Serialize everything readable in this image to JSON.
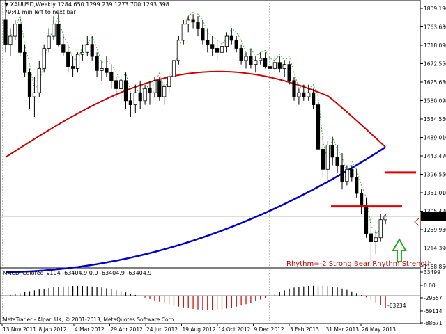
{
  "main_header": {
    "symbol": "XAUUSD,Weekly",
    "ohlc": "1284.650 1299.239 1273.700 1293.398",
    "bar_timer": "79:41 min left to next bar"
  },
  "macd_header": {
    "title": "MACD_Colored_v104 -63404.9 0.0 -63404.9 -63404.9"
  },
  "footer": {
    "copyright": "MetaTrader - Alpari UK, © 2001-2013, MetaQuotes Software Corp."
  },
  "annotation": {
    "rhythm_text": "Rhythm=-2 Strong Bear Rhythm Strength"
  },
  "current_price_tag": "1293.398",
  "colors": {
    "background": "#ffffff",
    "candle": "#000000",
    "ma_red": "#cc0000",
    "ma_blue": "#0000cc",
    "signal_green": "#2aa02a",
    "level_red": "#e00000",
    "arrow_green": "#22aa22",
    "grid_dotted": "#808080"
  },
  "chart_data": {
    "type": "candlestick",
    "price_axis_ticks": [
      "1809.190",
      "1763.630",
      "1718.090",
      "1672.550",
      "1625.630",
      "1580.090",
      "1534.550",
      "1489.010",
      "1443.470",
      "1396.550",
      "1351.010",
      "1305.470",
      "1259.930",
      "1214.390",
      "1168.850"
    ],
    "time_axis_ticks": [
      "13 Nov 2011",
      "8 Jan 2012",
      "4 Mar 2012",
      "29 Apr 2012",
      "24 Jun 2012",
      "19 Aug 2012",
      "14 Oct 2012",
      "9 Dec 2012",
      "3 Feb 2013",
      "31 Mar 2013",
      "26 May 2013"
    ],
    "macd_axis_ticks": [
      "33499",
      "0.00",
      "-29557",
      "-59114",
      "-88671"
    ],
    "macd_inline_value": "-63234",
    "candles": [
      [
        1780,
        1830,
        1700,
        1720
      ],
      [
        1720,
        1760,
        1690,
        1740
      ],
      [
        1740,
        1780,
        1730,
        1770
      ],
      [
        1770,
        1790,
        1690,
        1700
      ],
      [
        1700,
        1720,
        1640,
        1650
      ],
      [
        1650,
        1660,
        1560,
        1590
      ],
      [
        1590,
        1640,
        1540,
        1600
      ],
      [
        1600,
        1680,
        1590,
        1660
      ],
      [
        1660,
        1720,
        1650,
        1710
      ],
      [
        1710,
        1760,
        1700,
        1740
      ],
      [
        1740,
        1790,
        1730,
        1770
      ],
      [
        1770,
        1795,
        1715,
        1720
      ],
      [
        1720,
        1745,
        1690,
        1700
      ],
      [
        1700,
        1720,
        1650,
        1665
      ],
      [
        1665,
        1690,
        1640,
        1660
      ],
      [
        1660,
        1700,
        1650,
        1695
      ],
      [
        1695,
        1720,
        1680,
        1700
      ],
      [
        1700,
        1740,
        1690,
        1720
      ],
      [
        1720,
        1740,
        1680,
        1690
      ],
      [
        1690,
        1700,
        1640,
        1655
      ],
      [
        1655,
        1680,
        1630,
        1660
      ],
      [
        1660,
        1690,
        1640,
        1650
      ],
      [
        1650,
        1670,
        1610,
        1630
      ],
      [
        1630,
        1640,
        1590,
        1610
      ],
      [
        1610,
        1640,
        1580,
        1630
      ],
      [
        1630,
        1650,
        1560,
        1580
      ],
      [
        1580,
        1600,
        1540,
        1570
      ],
      [
        1570,
        1620,
        1550,
        1600
      ],
      [
        1600,
        1630,
        1560,
        1580
      ],
      [
        1580,
        1620,
        1570,
        1610
      ],
      [
        1610,
        1630,
        1570,
        1600
      ],
      [
        1600,
        1640,
        1590,
        1630
      ],
      [
        1630,
        1640,
        1580,
        1590
      ],
      [
        1590,
        1620,
        1570,
        1615
      ],
      [
        1615,
        1650,
        1600,
        1640
      ],
      [
        1640,
        1690,
        1630,
        1680
      ],
      [
        1680,
        1740,
        1670,
        1730
      ],
      [
        1730,
        1780,
        1720,
        1770
      ],
      [
        1770,
        1790,
        1750,
        1780
      ],
      [
        1780,
        1795,
        1760,
        1775
      ],
      [
        1775,
        1790,
        1740,
        1760
      ],
      [
        1760,
        1780,
        1720,
        1730
      ],
      [
        1730,
        1760,
        1700,
        1720
      ],
      [
        1720,
        1740,
        1690,
        1710
      ],
      [
        1710,
        1730,
        1680,
        1700
      ],
      [
        1700,
        1720,
        1690,
        1715
      ],
      [
        1715,
        1750,
        1700,
        1740
      ],
      [
        1740,
        1760,
        1720,
        1730
      ],
      [
        1730,
        1740,
        1700,
        1710
      ],
      [
        1710,
        1720,
        1670,
        1680
      ],
      [
        1680,
        1700,
        1660,
        1690
      ],
      [
        1690,
        1710,
        1660,
        1670
      ],
      [
        1670,
        1690,
        1650,
        1680
      ],
      [
        1680,
        1700,
        1670,
        1685
      ],
      [
        1685,
        1700,
        1660,
        1665
      ],
      [
        1665,
        1680,
        1640,
        1660
      ],
      [
        1660,
        1690,
        1650,
        1675
      ],
      [
        1675,
        1690,
        1650,
        1660
      ],
      [
        1660,
        1680,
        1640,
        1670
      ],
      [
        1670,
        1680,
        1620,
        1630
      ],
      [
        1630,
        1640,
        1580,
        1590
      ],
      [
        1590,
        1610,
        1570,
        1600
      ],
      [
        1600,
        1620,
        1580,
        1590
      ],
      [
        1590,
        1620,
        1580,
        1600
      ],
      [
        1600,
        1610,
        1560,
        1570
      ],
      [
        1570,
        1580,
        1450,
        1460
      ],
      [
        1460,
        1490,
        1390,
        1410
      ],
      [
        1410,
        1480,
        1380,
        1470
      ],
      [
        1470,
        1490,
        1420,
        1440
      ],
      [
        1440,
        1470,
        1400,
        1420
      ],
      [
        1420,
        1450,
        1360,
        1380
      ],
      [
        1380,
        1420,
        1370,
        1410
      ],
      [
        1410,
        1420,
        1380,
        1390
      ],
      [
        1390,
        1410,
        1340,
        1350
      ],
      [
        1350,
        1360,
        1300,
        1320
      ],
      [
        1320,
        1340,
        1240,
        1250
      ],
      [
        1250,
        1290,
        1180,
        1230
      ],
      [
        1230,
        1260,
        1200,
        1240
      ],
      [
        1240,
        1300,
        1230,
        1285
      ],
      [
        1284.65,
        1299.239,
        1273.7,
        1293.398
      ]
    ],
    "price_min": 1168.85,
    "price_max": 1809.19,
    "horizontal_levels": [
      1402,
      1318
    ]
  }
}
